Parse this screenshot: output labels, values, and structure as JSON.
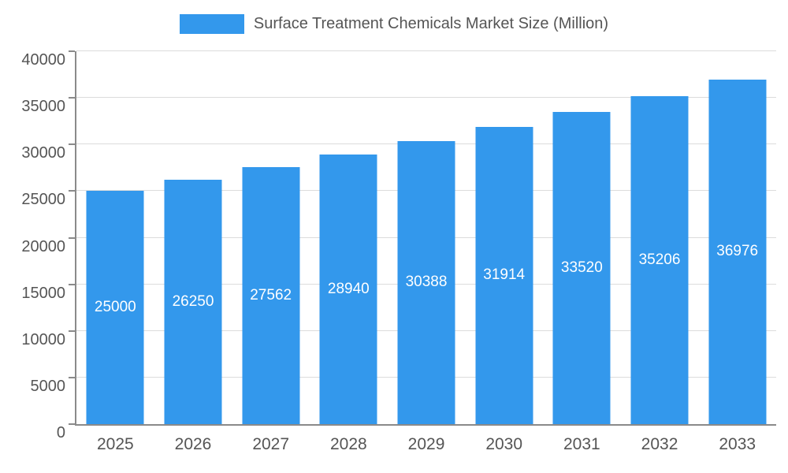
{
  "legend": {
    "title": "Surface Treatment Chemicals Market Size (Million)"
  },
  "chart_data": {
    "type": "bar",
    "title": "Surface Treatment Chemicals Market Size (Million)",
    "categories": [
      "2025",
      "2026",
      "2027",
      "2028",
      "2029",
      "2030",
      "2031",
      "2032",
      "2033"
    ],
    "values": [
      25000,
      26250,
      27562,
      28940,
      30388,
      31914,
      33520,
      35206,
      36976
    ],
    "value_labels": [
      "25000",
      "26250",
      "27562",
      "28940",
      "30388",
      "31914",
      "33520",
      "35206",
      "36976"
    ],
    "xlabel": "",
    "ylabel": "",
    "ylim": [
      0,
      40000
    ],
    "ytick_step": 5000,
    "ytick_labels": [
      "0",
      "5000",
      "10000",
      "15000",
      "20000",
      "25000",
      "30000",
      "35000",
      "40000"
    ],
    "grid": true,
    "legend_position": "top",
    "colors": {
      "bar": "#3398EC",
      "bar_value_text": "#ffffff",
      "axis": "#8a8a8a",
      "gridline": "#dcdcdc",
      "tick_text": "#555555",
      "title_text": "#555555",
      "background": "#ffffff"
    }
  }
}
